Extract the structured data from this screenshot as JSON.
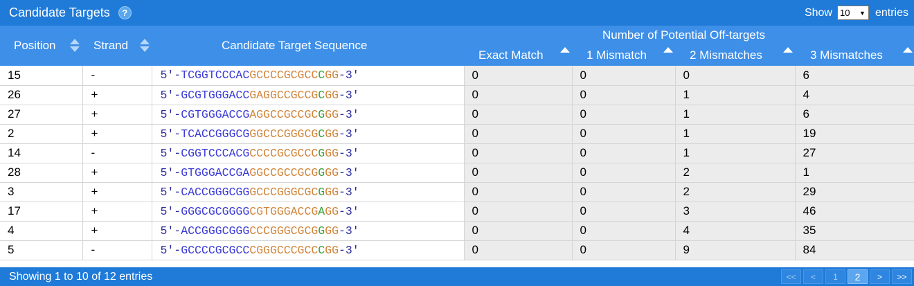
{
  "panel": {
    "title": "Candidate Targets",
    "help_glyph": "?",
    "show_label": "Show",
    "entries_label": "entries",
    "page_length": "10"
  },
  "headers": {
    "position": "Position",
    "strand": "Strand",
    "sequence": "Candidate Target Sequence",
    "offtargets_group": "Number of Potential Off-targets",
    "exact": "Exact Match",
    "mm1": "1 Mismatch",
    "mm2": "2 Mismatches",
    "mm3": "3 Mismatches"
  },
  "colors": {
    "header_bar": "#1f7ad8",
    "column_header": "#3e8fe8",
    "prefix_suffix": "#2b2b9c",
    "seed_blue": "#3a3ad6",
    "seed_orange": "#d2843a",
    "pam_green": "#38a03a"
  },
  "rows": [
    {
      "position": "15",
      "strand": "-",
      "seq": {
        "p5": "5'-",
        "blue": "TCGGTCCCAC",
        "orange": "GCCCCGCGCC",
        "green": "C",
        "gg": "GG",
        "p3": "-3'"
      },
      "exact": "0",
      "mm1": "0",
      "mm2": "0",
      "mm3": "6"
    },
    {
      "position": "26",
      "strand": "+",
      "seq": {
        "p5": "5'-",
        "blue": "GCGTGGGACC",
        "orange": "GAGGCCGCCG",
        "green": "C",
        "gg": "GG",
        "p3": "-3'"
      },
      "exact": "0",
      "mm1": "0",
      "mm2": "1",
      "mm3": "4"
    },
    {
      "position": "27",
      "strand": "+",
      "seq": {
        "p5": "5'-",
        "blue": "CGTGGGACCG",
        "orange": "AGGCCGCCGC",
        "green": "G",
        "gg": "GG",
        "p3": "-3'"
      },
      "exact": "0",
      "mm1": "0",
      "mm2": "1",
      "mm3": "6"
    },
    {
      "position": "2",
      "strand": "+",
      "seq": {
        "p5": "5'-",
        "blue": "TCACCGGGCG",
        "orange": "GGCCCGGGCG",
        "green": "C",
        "gg": "GG",
        "p3": "-3'"
      },
      "exact": "0",
      "mm1": "0",
      "mm2": "1",
      "mm3": "19"
    },
    {
      "position": "14",
      "strand": "-",
      "seq": {
        "p5": "5'-",
        "blue": "CGGTCCCACG",
        "orange": "CCCCGCGCCC",
        "green": "G",
        "gg": "GG",
        "p3": "-3'"
      },
      "exact": "0",
      "mm1": "0",
      "mm2": "1",
      "mm3": "27"
    },
    {
      "position": "28",
      "strand": "+",
      "seq": {
        "p5": "5'-",
        "blue": "GTGGGACCGA",
        "orange": "GGCCGCCGCG",
        "green": "G",
        "gg": "GG",
        "p3": "-3'"
      },
      "exact": "0",
      "mm1": "0",
      "mm2": "2",
      "mm3": "1"
    },
    {
      "position": "3",
      "strand": "+",
      "seq": {
        "p5": "5'-",
        "blue": "CACCGGGCGG",
        "orange": "GCCCGGGCGC",
        "green": "G",
        "gg": "GG",
        "p3": "-3'"
      },
      "exact": "0",
      "mm1": "0",
      "mm2": "2",
      "mm3": "29"
    },
    {
      "position": "17",
      "strand": "+",
      "seq": {
        "p5": "5'-",
        "blue": "GGGCGCGGGG",
        "orange": "CGTGGGACCG",
        "green": "A",
        "gg": "GG",
        "p3": "-3'"
      },
      "exact": "0",
      "mm1": "0",
      "mm2": "3",
      "mm3": "46"
    },
    {
      "position": "4",
      "strand": "+",
      "seq": {
        "p5": "5'-",
        "blue": "ACCGGGCGGG",
        "orange": "CCCGGGCGCG",
        "green": "G",
        "gg": "GG",
        "p3": "-3'"
      },
      "exact": "0",
      "mm1": "0",
      "mm2": "4",
      "mm3": "35"
    },
    {
      "position": "5",
      "strand": "-",
      "seq": {
        "p5": "5'-",
        "blue": "GCCCCGCGCC",
        "orange": "CGGGCCCGCC",
        "green": "C",
        "gg": "GG",
        "p3": "-3'"
      },
      "exact": "0",
      "mm1": "0",
      "mm2": "9",
      "mm3": "84"
    }
  ],
  "footer": {
    "info": "Showing 1 to 10 of 12 entries",
    "first": "<<",
    "prev": "<",
    "page1": "1",
    "page2": "2",
    "next": ">",
    "last": ">>"
  }
}
